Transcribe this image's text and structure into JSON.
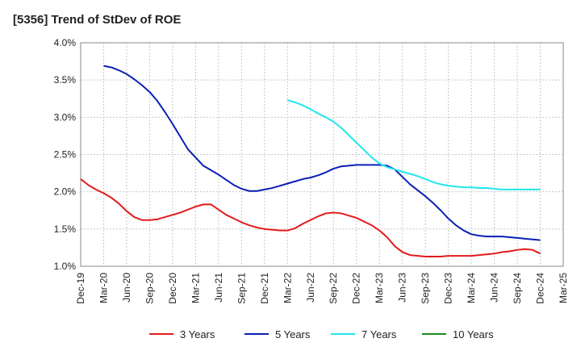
{
  "title": "[5356]  Trend of StDev of ROE",
  "chart_data": {
    "type": "line",
    "title": "[5356]  Trend of StDev of ROE",
    "xlabel": "",
    "ylabel": "",
    "ylim": [
      1.0,
      4.0
    ],
    "y_ticks": [
      "1.0%",
      "1.5%",
      "2.0%",
      "2.5%",
      "3.0%",
      "3.5%",
      "4.0%"
    ],
    "x_ticks": [
      "Dec-19",
      "Mar-20",
      "Jun-20",
      "Sep-20",
      "Dec-20",
      "Mar-21",
      "Jun-21",
      "Sep-21",
      "Dec-21",
      "Mar-22",
      "Jun-22",
      "Sep-22",
      "Dec-22",
      "Mar-23",
      "Jun-23",
      "Sep-23",
      "Dec-23",
      "Mar-24",
      "Jun-24",
      "Sep-24",
      "Dec-24",
      "Mar-25"
    ],
    "grid": true,
    "legend_position": "bottom",
    "series": [
      {
        "name": "3 Years",
        "color": "#e31a1c",
        "points": [
          [
            "Dec-19",
            2.17
          ],
          [
            "Jan-20",
            2.09
          ],
          [
            "Feb-20",
            2.03
          ],
          [
            "Mar-20",
            1.98
          ],
          [
            "Apr-20",
            1.92
          ],
          [
            "May-20",
            1.84
          ],
          [
            "Jun-20",
            1.74
          ],
          [
            "Jul-20",
            1.66
          ],
          [
            "Aug-20",
            1.62
          ],
          [
            "Sep-20",
            1.62
          ],
          [
            "Oct-20",
            1.63
          ],
          [
            "Nov-20",
            1.66
          ],
          [
            "Dec-20",
            1.69
          ],
          [
            "Jan-21",
            1.72
          ],
          [
            "Feb-21",
            1.76
          ],
          [
            "Mar-21",
            1.8
          ],
          [
            "Apr-21",
            1.83
          ],
          [
            "May-21",
            1.83
          ],
          [
            "Jun-21",
            1.76
          ],
          [
            "Jul-21",
            1.69
          ],
          [
            "Aug-21",
            1.64
          ],
          [
            "Sep-21",
            1.59
          ],
          [
            "Oct-21",
            1.55
          ],
          [
            "Nov-21",
            1.52
          ],
          [
            "Dec-21",
            1.5
          ],
          [
            "Jan-22",
            1.49
          ],
          [
            "Feb-22",
            1.48
          ],
          [
            "Mar-22",
            1.48
          ],
          [
            "Apr-22",
            1.51
          ],
          [
            "May-22",
            1.57
          ],
          [
            "Jun-22",
            1.62
          ],
          [
            "Jul-22",
            1.67
          ],
          [
            "Aug-22",
            1.71
          ],
          [
            "Sep-22",
            1.72
          ],
          [
            "Oct-22",
            1.71
          ],
          [
            "Nov-22",
            1.68
          ],
          [
            "Dec-22",
            1.65
          ],
          [
            "Jan-23",
            1.6
          ],
          [
            "Feb-23",
            1.55
          ],
          [
            "Mar-23",
            1.48
          ],
          [
            "Apr-23",
            1.39
          ],
          [
            "May-23",
            1.27
          ],
          [
            "Jun-23",
            1.19
          ],
          [
            "Jul-23",
            1.15
          ],
          [
            "Aug-23",
            1.14
          ],
          [
            "Sep-23",
            1.13
          ],
          [
            "Oct-23",
            1.13
          ],
          [
            "Nov-23",
            1.13
          ],
          [
            "Dec-23",
            1.14
          ],
          [
            "Jan-24",
            1.14
          ],
          [
            "Feb-24",
            1.14
          ],
          [
            "Mar-24",
            1.14
          ],
          [
            "Apr-24",
            1.15
          ],
          [
            "May-24",
            1.16
          ],
          [
            "Jun-24",
            1.17
          ],
          [
            "Jul-24",
            1.19
          ],
          [
            "Aug-24",
            1.2
          ],
          [
            "Sep-24",
            1.22
          ],
          [
            "Oct-24",
            1.23
          ],
          [
            "Nov-24",
            1.22
          ],
          [
            "Dec-24",
            1.17
          ]
        ]
      },
      {
        "name": "5 Years",
        "color": "#0b1fb5",
        "points": [
          [
            "Mar-20",
            3.69
          ],
          [
            "Apr-20",
            3.67
          ],
          [
            "May-20",
            3.63
          ],
          [
            "Jun-20",
            3.58
          ],
          [
            "Jul-20",
            3.51
          ],
          [
            "Aug-20",
            3.43
          ],
          [
            "Sep-20",
            3.34
          ],
          [
            "Oct-20",
            3.22
          ],
          [
            "Nov-20",
            3.07
          ],
          [
            "Dec-20",
            2.91
          ],
          [
            "Jan-21",
            2.74
          ],
          [
            "Feb-21",
            2.57
          ],
          [
            "Mar-21",
            2.46
          ],
          [
            "Apr-21",
            2.35
          ],
          [
            "May-21",
            2.29
          ],
          [
            "Jun-21",
            2.23
          ],
          [
            "Jul-21",
            2.16
          ],
          [
            "Aug-21",
            2.09
          ],
          [
            "Sep-21",
            2.04
          ],
          [
            "Oct-21",
            2.01
          ],
          [
            "Nov-21",
            2.01
          ],
          [
            "Dec-21",
            2.03
          ],
          [
            "Jan-22",
            2.05
          ],
          [
            "Feb-22",
            2.08
          ],
          [
            "Mar-22",
            2.11
          ],
          [
            "Apr-22",
            2.14
          ],
          [
            "May-22",
            2.17
          ],
          [
            "Jun-22",
            2.19
          ],
          [
            "Jul-22",
            2.22
          ],
          [
            "Aug-22",
            2.26
          ],
          [
            "Sep-22",
            2.31
          ],
          [
            "Oct-22",
            2.34
          ],
          [
            "Nov-22",
            2.35
          ],
          [
            "Dec-22",
            2.36
          ],
          [
            "Jan-23",
            2.36
          ],
          [
            "Feb-23",
            2.36
          ],
          [
            "Mar-23",
            2.36
          ],
          [
            "Apr-23",
            2.35
          ],
          [
            "May-23",
            2.3
          ],
          [
            "Jun-23",
            2.2
          ],
          [
            "Jul-23",
            2.1
          ],
          [
            "Aug-23",
            2.02
          ],
          [
            "Sep-23",
            1.94
          ],
          [
            "Oct-23",
            1.85
          ],
          [
            "Nov-23",
            1.75
          ],
          [
            "Dec-23",
            1.64
          ],
          [
            "Jan-24",
            1.55
          ],
          [
            "Feb-24",
            1.48
          ],
          [
            "Mar-24",
            1.43
          ],
          [
            "Apr-24",
            1.41
          ],
          [
            "May-24",
            1.4
          ],
          [
            "Jun-24",
            1.4
          ],
          [
            "Jul-24",
            1.4
          ],
          [
            "Aug-24",
            1.39
          ],
          [
            "Sep-24",
            1.38
          ],
          [
            "Oct-24",
            1.37
          ],
          [
            "Nov-24",
            1.36
          ],
          [
            "Dec-24",
            1.35
          ]
        ]
      },
      {
        "name": "7 Years",
        "color": "#22e6ee",
        "points": [
          [
            "Mar-22",
            3.23
          ],
          [
            "Apr-22",
            3.2
          ],
          [
            "May-22",
            3.16
          ],
          [
            "Jun-22",
            3.11
          ],
          [
            "Jul-22",
            3.05
          ],
          [
            "Aug-22",
            3.0
          ],
          [
            "Sep-22",
            2.94
          ],
          [
            "Oct-22",
            2.86
          ],
          [
            "Nov-22",
            2.76
          ],
          [
            "Dec-22",
            2.66
          ],
          [
            "Jan-23",
            2.56
          ],
          [
            "Feb-23",
            2.46
          ],
          [
            "Mar-23",
            2.38
          ],
          [
            "Apr-23",
            2.33
          ],
          [
            "May-23",
            2.3
          ],
          [
            "Jun-23",
            2.27
          ],
          [
            "Jul-23",
            2.24
          ],
          [
            "Aug-23",
            2.21
          ],
          [
            "Sep-23",
            2.17
          ],
          [
            "Oct-23",
            2.13
          ],
          [
            "Nov-23",
            2.1
          ],
          [
            "Dec-23",
            2.08
          ],
          [
            "Jan-24",
            2.07
          ],
          [
            "Feb-24",
            2.06
          ],
          [
            "Mar-24",
            2.06
          ],
          [
            "Apr-24",
            2.05
          ],
          [
            "May-24",
            2.05
          ],
          [
            "Jun-24",
            2.04
          ],
          [
            "Jul-24",
            2.03
          ],
          [
            "Aug-24",
            2.03
          ],
          [
            "Sep-24",
            2.03
          ],
          [
            "Oct-24",
            2.03
          ],
          [
            "Nov-24",
            2.03
          ],
          [
            "Dec-24",
            2.03
          ]
        ]
      },
      {
        "name": "10 Years",
        "color": "#1a8a1a",
        "points": []
      }
    ]
  }
}
